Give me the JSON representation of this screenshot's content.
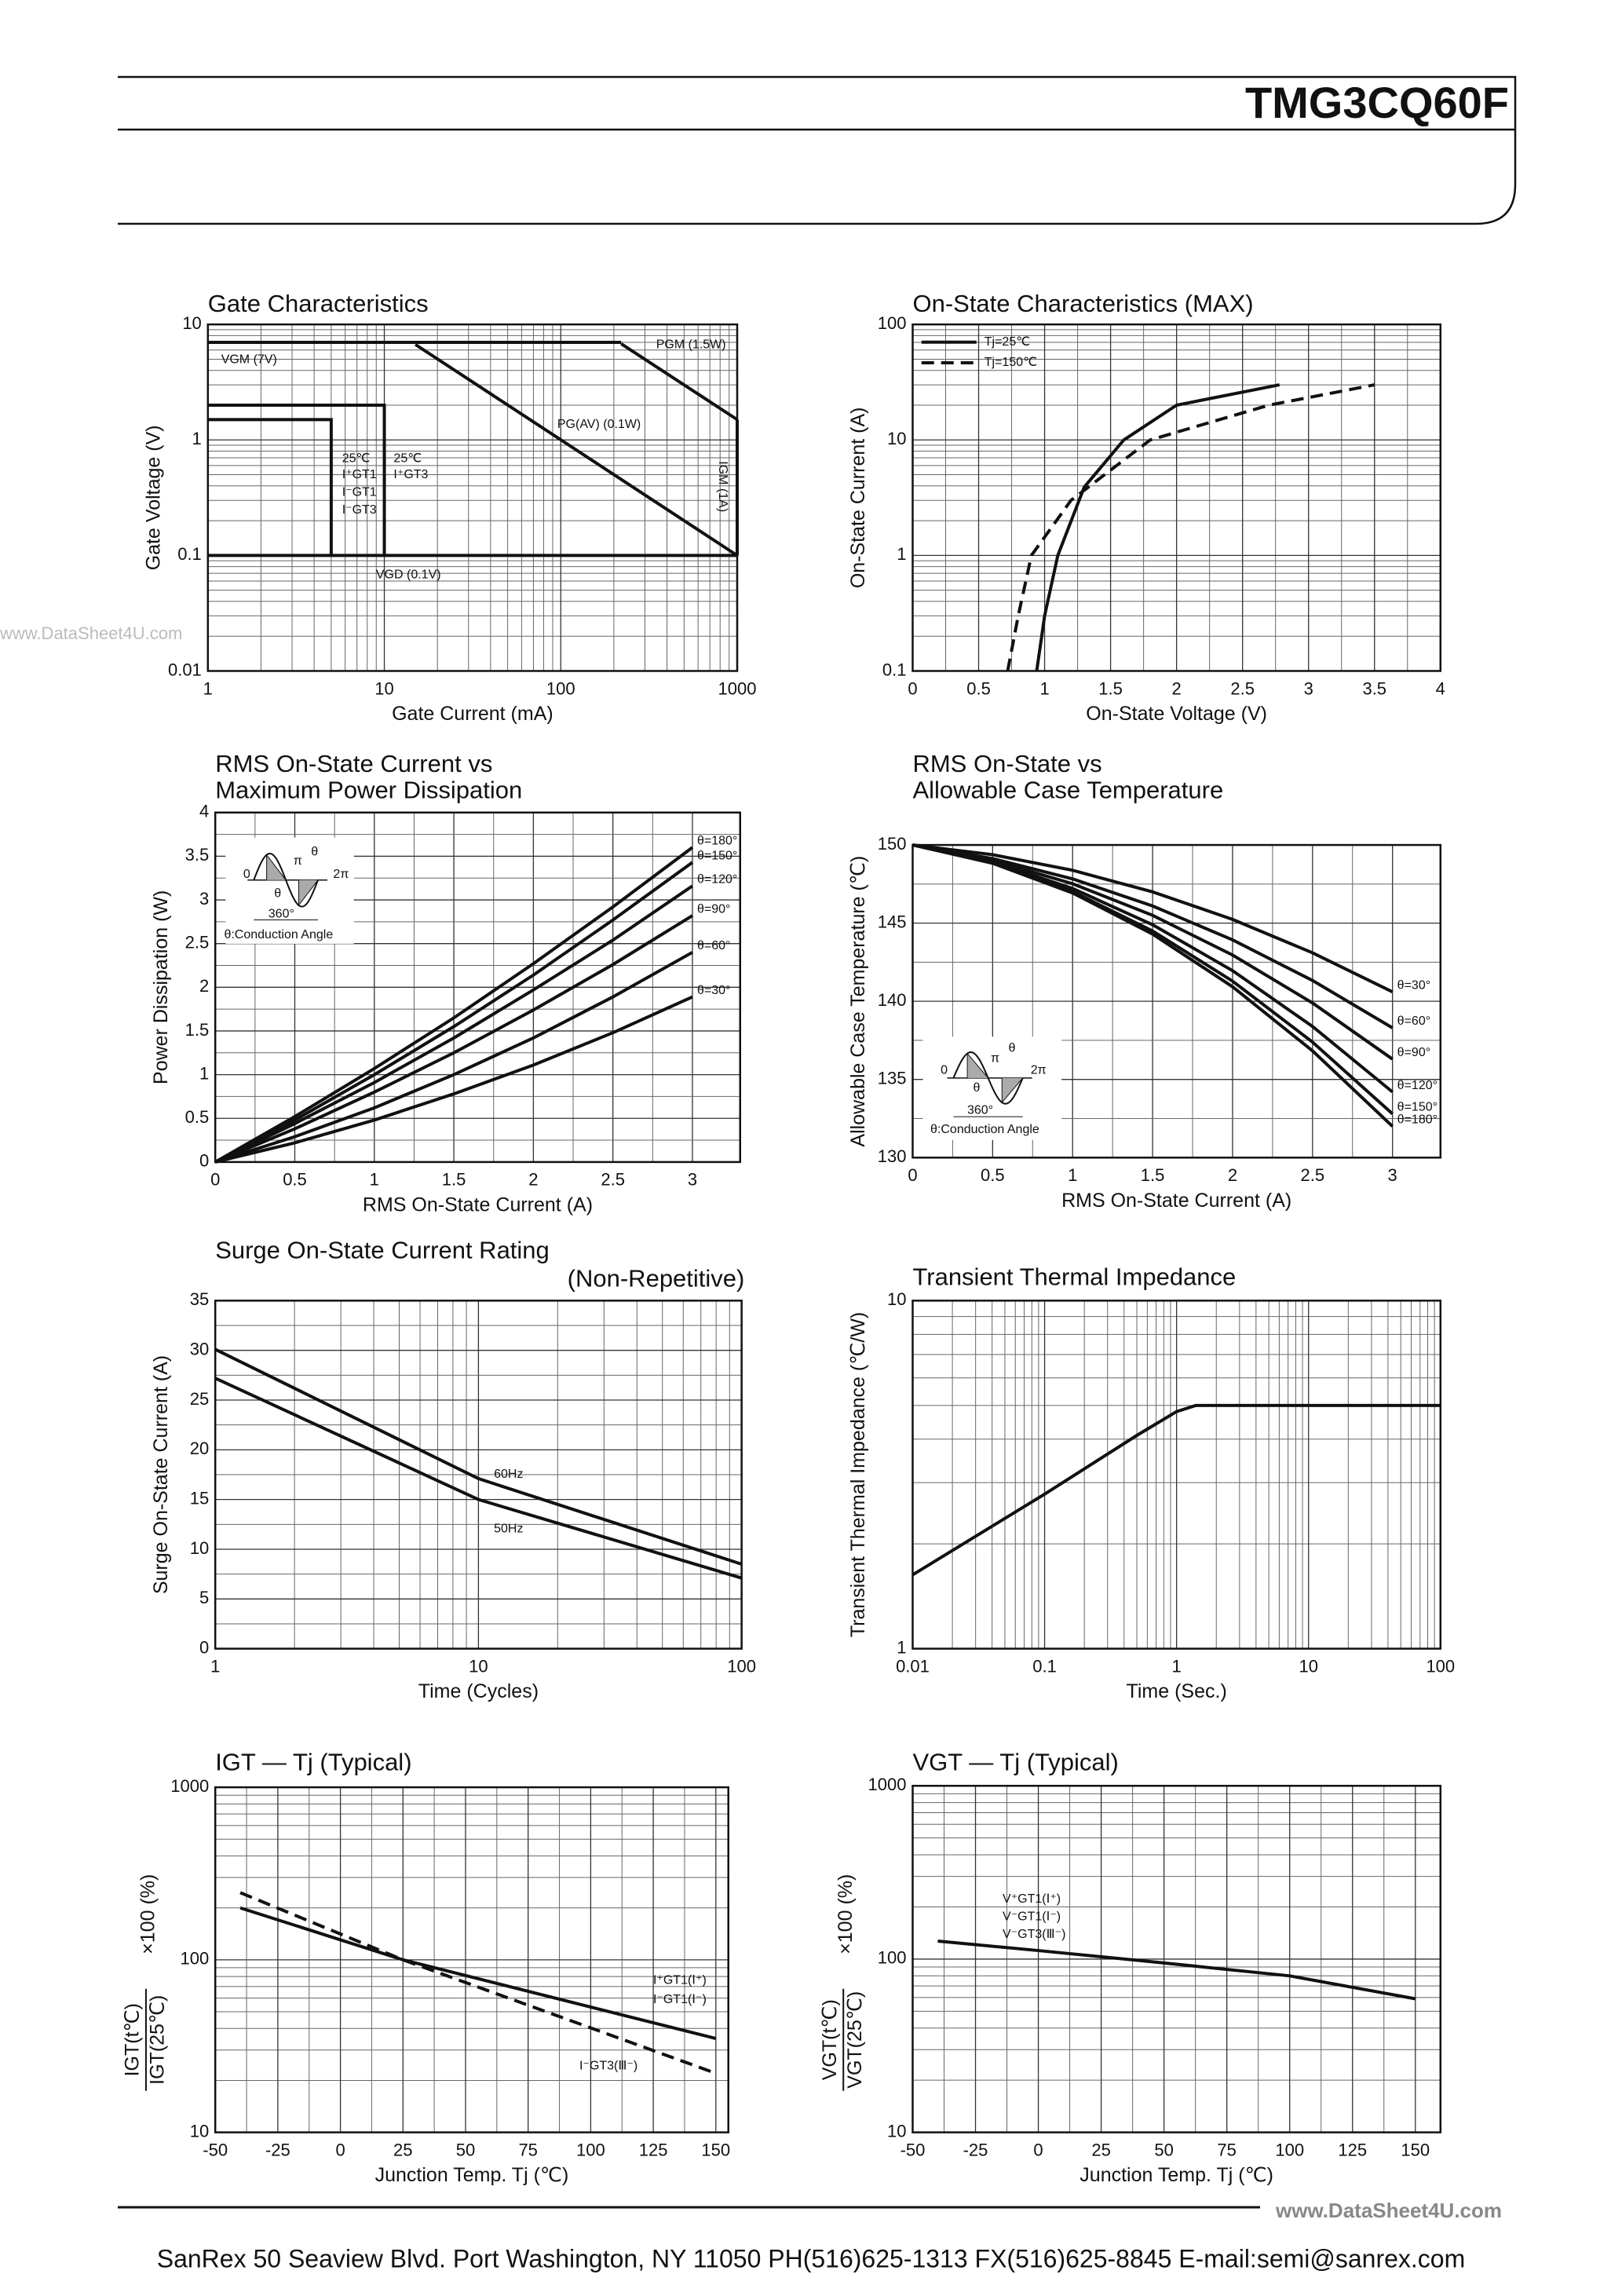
{
  "header": {
    "title": "TMG3CQ60F"
  },
  "footer": {
    "text": "SanRex 50 Seaview Blvd. Port Washington, NY 11050 PH(516)625-1313 FX(516)625-8845 E-mail:semi@sanrex.com"
  },
  "watermarks": [
    "www.DataSheet4U.com",
    "www.DataSheet4U.com"
  ],
  "chart_data": [
    {
      "type": "line",
      "title": "Gate Characteristics",
      "xlabel": "Gate Current (mA)",
      "ylabel": "Gate Voltage (V)",
      "xscale": "log",
      "yscale": "log",
      "xlim": [
        1,
        1000
      ],
      "ylim": [
        0.01,
        10
      ],
      "xticks": [
        1,
        10,
        100,
        1000
      ],
      "yticks": [
        0.01,
        0.1,
        1,
        10
      ],
      "grid": true,
      "series": [
        {
          "name": "VGM (7V)",
          "x": [
            1,
            220
          ],
          "values": [
            7,
            7
          ]
        },
        {
          "name": "PGM (1.5W)",
          "x": [
            220,
            1000
          ],
          "values": [
            6.8,
            1.5
          ]
        },
        {
          "name": "PG(AV) (0.1W)",
          "x": [
            15,
            1000
          ],
          "values": [
            6.7,
            0.1
          ]
        },
        {
          "name": "IGM (1A)",
          "x": [
            1000,
            1000
          ],
          "values": [
            1.5,
            0.1
          ]
        },
        {
          "name": "VGD (0.1V)",
          "x": [
            1,
            1000
          ],
          "values": [
            0.1,
            0.1
          ]
        },
        {
          "x": [
            1,
            10,
            10
          ],
          "values": [
            2,
            2,
            0.1
          ]
        },
        {
          "x": [
            1,
            5,
            5
          ],
          "values": [
            1.5,
            1.5,
            0.1
          ]
        }
      ],
      "annotations": [
        "25℃",
        "I⁺GT1",
        "I⁻GT1",
        "I⁻GT3",
        "25℃",
        "I⁺GT3"
      ]
    },
    {
      "type": "line",
      "title": "On-State Characteristics (MAX)",
      "xlabel": "On-State Voltage (V)",
      "ylabel": "On-State Current (A)",
      "yscale": "log",
      "xlim": [
        0,
        4
      ],
      "ylim": [
        0.1,
        100
      ],
      "xticks": [
        0,
        0.5,
        1,
        1.5,
        2,
        2.5,
        3,
        3.5,
        4
      ],
      "yticks": [
        0.1,
        1,
        10,
        100
      ],
      "grid": true,
      "legend": "upper-left",
      "series": [
        {
          "name": "Tj=25℃",
          "x": [
            0.94,
            1.0,
            1.1,
            1.3,
            1.6,
            2.0,
            2.78
          ],
          "values": [
            0.1,
            0.3,
            1,
            3.9,
            10,
            20,
            30
          ]
        },
        {
          "name": "Tj=150℃",
          "dash": true,
          "x": [
            0.72,
            0.8,
            0.9,
            1.2,
            1.8,
            2.7,
            3.5
          ],
          "values": [
            0.1,
            0.3,
            1,
            3,
            10,
            20,
            30
          ]
        }
      ]
    },
    {
      "type": "line",
      "title": "RMS On-State Current vs",
      "subtitle": "Maximum Power Dissipation",
      "xlabel": "RMS On-State Current (A)",
      "ylabel": "Power Dissipation (W)",
      "xlim": [
        0,
        3.3
      ],
      "ylim": [
        0,
        4
      ],
      "xticks": [
        0,
        0.5,
        1,
        1.5,
        2,
        2.5,
        3
      ],
      "yticks": [
        0,
        0.5,
        1,
        1.5,
        2,
        2.5,
        3,
        3.5,
        4
      ],
      "grid": true,
      "series": [
        {
          "name": "θ=180°",
          "x": [
            0,
            0.5,
            1,
            1.5,
            2,
            2.5,
            3
          ],
          "values": [
            0,
            0.52,
            1.07,
            1.65,
            2.27,
            2.92,
            3.6
          ]
        },
        {
          "name": "θ=150°",
          "x": [
            0,
            0.5,
            1,
            1.5,
            2,
            2.5,
            3
          ],
          "values": [
            0,
            0.48,
            1.0,
            1.55,
            2.14,
            2.77,
            3.43
          ]
        },
        {
          "name": "θ=120°",
          "x": [
            0,
            0.5,
            1,
            1.5,
            2,
            2.5,
            3
          ],
          "values": [
            0,
            0.44,
            0.91,
            1.42,
            1.97,
            2.54,
            3.16
          ]
        },
        {
          "name": "θ=90°",
          "x": [
            0,
            0.5,
            1,
            1.5,
            2,
            2.5,
            3
          ],
          "values": [
            0,
            0.38,
            0.8,
            1.25,
            1.74,
            2.26,
            2.82
          ]
        },
        {
          "name": "θ=60°",
          "x": [
            0,
            0.5,
            1,
            1.5,
            2,
            2.5,
            3
          ],
          "values": [
            0,
            0.29,
            0.62,
            1.0,
            1.42,
            1.89,
            2.4
          ]
        },
        {
          "name": "θ=30°",
          "x": [
            0,
            0.5,
            1,
            1.5,
            2,
            2.5,
            3
          ],
          "values": [
            0,
            0.22,
            0.48,
            0.78,
            1.11,
            1.48,
            1.89
          ]
        }
      ],
      "annotations": [
        "0",
        "π",
        "2π",
        "θ",
        "θ",
        "360°",
        "θ:Conduction Angle"
      ]
    },
    {
      "type": "line",
      "title": "RMS On-State vs",
      "subtitle": "Allowable Case Temperature",
      "xlabel": "RMS On-State Current (A)",
      "ylabel": "Allowable Case Temperature (℃)",
      "xlim": [
        0,
        3.3
      ],
      "ylim": [
        130,
        150
      ],
      "xticks": [
        0,
        0.5,
        1,
        1.5,
        2,
        2.5,
        3
      ],
      "yticks": [
        130,
        135,
        140,
        145,
        150
      ],
      "grid": true,
      "series": [
        {
          "name": "θ=30°",
          "x": [
            0,
            0.5,
            1,
            1.5,
            2,
            2.5,
            3
          ],
          "values": [
            150,
            149.38,
            148.38,
            147.0,
            145.24,
            143.1,
            140.6
          ]
        },
        {
          "name": "θ=60°",
          "x": [
            0,
            0.5,
            1,
            1.5,
            2,
            2.5,
            3
          ],
          "values": [
            150,
            149.13,
            147.83,
            146.1,
            143.93,
            141.33,
            138.3
          ]
        },
        {
          "name": "θ=90°",
          "x": [
            0,
            0.5,
            1,
            1.5,
            2,
            2.5,
            3
          ],
          "values": [
            150,
            149.02,
            147.52,
            145.5,
            142.96,
            139.89,
            136.3
          ]
        },
        {
          "name": "θ=120°",
          "x": [
            0,
            0.5,
            1,
            1.5,
            2,
            2.5,
            3
          ],
          "values": [
            150,
            148.92,
            147.22,
            144.9,
            141.96,
            138.39,
            134.2
          ]
        },
        {
          "name": "θ=150°",
          "x": [
            0,
            0.5,
            1,
            1.5,
            2,
            2.5,
            3
          ],
          "values": [
            150,
            148.86,
            147.02,
            144.5,
            141.29,
            137.39,
            132.8
          ]
        },
        {
          "name": "θ=180°",
          "x": [
            0,
            0.5,
            1,
            1.5,
            2,
            2.5,
            3
          ],
          "values": [
            150,
            148.83,
            146.93,
            144.3,
            140.93,
            136.83,
            132.0
          ]
        }
      ],
      "annotations": [
        "0",
        "π",
        "2π",
        "θ",
        "θ",
        "360°",
        "θ:Conduction Angle"
      ]
    },
    {
      "type": "line",
      "title": "Surge On-State Current Rating",
      "subtitle": "(Non-Repetitive)",
      "xlabel": "Time (Cycles)",
      "ylabel": "Surge On-State Current (A)",
      "xscale": "log",
      "xlim": [
        1,
        100
      ],
      "ylim": [
        0,
        35
      ],
      "xticks": [
        1,
        10,
        100
      ],
      "yticks": [
        0,
        5,
        10,
        15,
        20,
        25,
        30,
        35
      ],
      "grid": true,
      "series": [
        {
          "name": "60Hz",
          "x": [
            1,
            10,
            100
          ],
          "values": [
            30.1,
            17.1,
            8.5
          ]
        },
        {
          "name": "50Hz",
          "x": [
            1,
            10,
            100
          ],
          "values": [
            27.2,
            15.0,
            7.1
          ]
        }
      ]
    },
    {
      "type": "line",
      "title": "Transient Thermal Impedance",
      "xlabel": "Time (Sec.)",
      "ylabel": "Transient Thermal Impedance (℃/W)",
      "xscale": "log",
      "yscale": "log",
      "xlim": [
        0.01,
        100
      ],
      "ylim": [
        1,
        10
      ],
      "xticks": [
        0.01,
        0.1,
        1,
        10,
        100
      ],
      "yticks": [
        1,
        10
      ],
      "grid": true,
      "series": [
        {
          "x": [
            0.01,
            0.1,
            0.5,
            1,
            1.4,
            100
          ],
          "values": [
            1.63,
            2.78,
            4.1,
            4.8,
            5.0,
            5.0
          ]
        }
      ]
    },
    {
      "type": "line",
      "title": "IGT — Tj (Typical)",
      "xlabel": "Junction Temp. Tj (℃)",
      "ylabel": {
        "numerator": "IGT(t℃)",
        "denominator": "IGT(25℃)",
        "suffix": "×100 (%)"
      },
      "yscale": "log",
      "xlim": [
        -50,
        155
      ],
      "ylim": [
        10,
        1000
      ],
      "xticks": [
        -50,
        -25,
        0,
        25,
        50,
        75,
        100,
        125,
        150
      ],
      "yticks": [
        10,
        100,
        1000
      ],
      "grid": true,
      "series": [
        {
          "name": "I⁺GT1(Ⅰ⁺)",
          "x": [
            -40,
            25,
            150
          ],
          "values": [
            200,
            100,
            35
          ]
        },
        {
          "name": "I⁻GT3(Ⅲ⁻)",
          "dash": true,
          "x": [
            -40,
            25,
            150
          ],
          "values": [
            245,
            100,
            22
          ]
        }
      ],
      "annotations": [
        "I⁻GT1(Ⅰ⁻)"
      ]
    },
    {
      "type": "line",
      "title": "VGT — Tj (Typical)",
      "xlabel": "Junction Temp. Tj (℃)",
      "ylabel": {
        "numerator": "VGT(t℃)",
        "denominator": "VGT(25℃)",
        "suffix": "×100 (%)"
      },
      "yscale": "log",
      "xlim": [
        -50,
        160
      ],
      "ylim": [
        10,
        1000
      ],
      "xticks": [
        -50,
        -25,
        0,
        25,
        50,
        75,
        100,
        125,
        150
      ],
      "yticks": [
        10,
        100,
        1000
      ],
      "grid": true,
      "series": [
        {
          "x": [
            -40,
            0,
            50,
            100,
            150
          ],
          "values": [
            127,
            112,
            95,
            80,
            59
          ]
        }
      ],
      "annotations": [
        "V⁺GT1(Ⅰ⁺)",
        "V⁻GT1(Ⅰ⁻)",
        "V⁻GT3(Ⅲ⁻)"
      ]
    }
  ]
}
